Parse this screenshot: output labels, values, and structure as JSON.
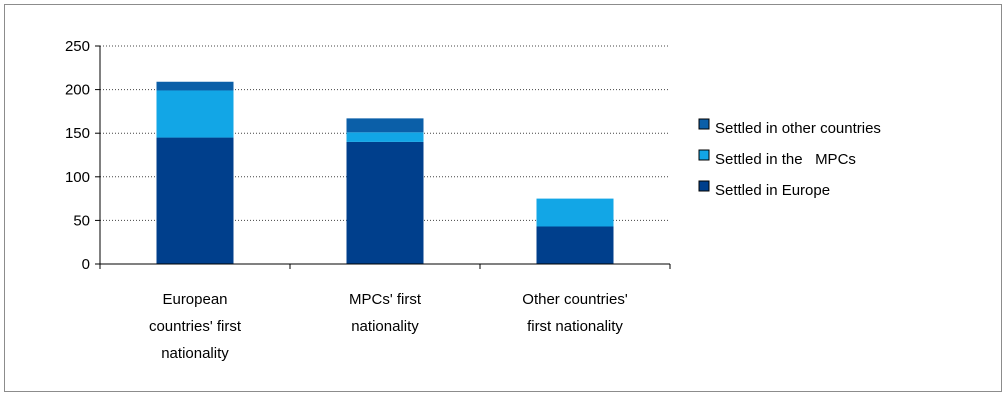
{
  "chart_data": {
    "type": "bar",
    "stacked": true,
    "categories": [
      [
        "European",
        "countries' first",
        "nationality"
      ],
      [
        "MPCs' first",
        "nationality"
      ],
      [
        "Other countries'",
        "first nationality"
      ]
    ],
    "series": [
      {
        "name": "Settled in Europe",
        "values": [
          145,
          140,
          43
        ],
        "color": "#003f8c"
      },
      {
        "name": "Settled in the   MPCs",
        "values": [
          54,
          11,
          32
        ],
        "color": "#12a6e6"
      },
      {
        "name": "Settled in other countries",
        "values": [
          10,
          16,
          0
        ],
        "color": "#0b5fa8"
      }
    ],
    "legend_order": [
      2,
      1,
      0
    ],
    "ylim": [
      0,
      250
    ],
    "yticks": [
      0,
      50,
      100,
      150,
      200,
      250
    ],
    "grid": {
      "y": true,
      "style": "dotted"
    },
    "legend_position": "right",
    "title": "",
    "xlabel": "",
    "ylabel": ""
  }
}
